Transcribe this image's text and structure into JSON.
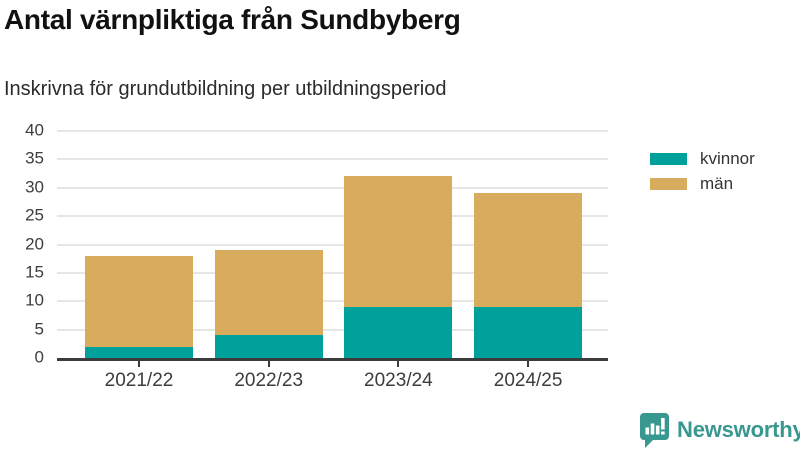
{
  "header": {
    "title": "Antal värnpliktiga från Sundbyberg",
    "subtitle": "Inskrivna för grundutbildning per utbildningsperiod"
  },
  "chart_data": {
    "type": "bar",
    "stacked": true,
    "title": "Antal värnpliktiga från Sundbyberg",
    "subtitle": "Inskrivna för grundutbildning per utbildningsperiod",
    "categories": [
      "2021/22",
      "2022/23",
      "2023/24",
      "2024/25"
    ],
    "series": [
      {
        "name": "kvinnor",
        "color": "#00a19a",
        "values": [
          2,
          4,
          9,
          9
        ]
      },
      {
        "name": "män",
        "color": "#d9ab5c",
        "values": [
          16,
          15,
          23,
          20
        ]
      }
    ],
    "totals": [
      18,
      19,
      32,
      29
    ],
    "xlabel": "",
    "ylabel": "",
    "ylim": [
      0,
      40
    ],
    "yticks": [
      0,
      5,
      10,
      15,
      20,
      25,
      30,
      35,
      40
    ],
    "grid": true,
    "legend_position": "right",
    "colors": {
      "gridline": "#e6e6e6",
      "axis": "#3c3c3c",
      "tick_label": "#3d3d3d"
    }
  },
  "branding": {
    "logo_text": "Newsworthy",
    "logo_color": "#38978f",
    "icon": "newsworthy-speech-bubble-bar-chart-icon"
  }
}
